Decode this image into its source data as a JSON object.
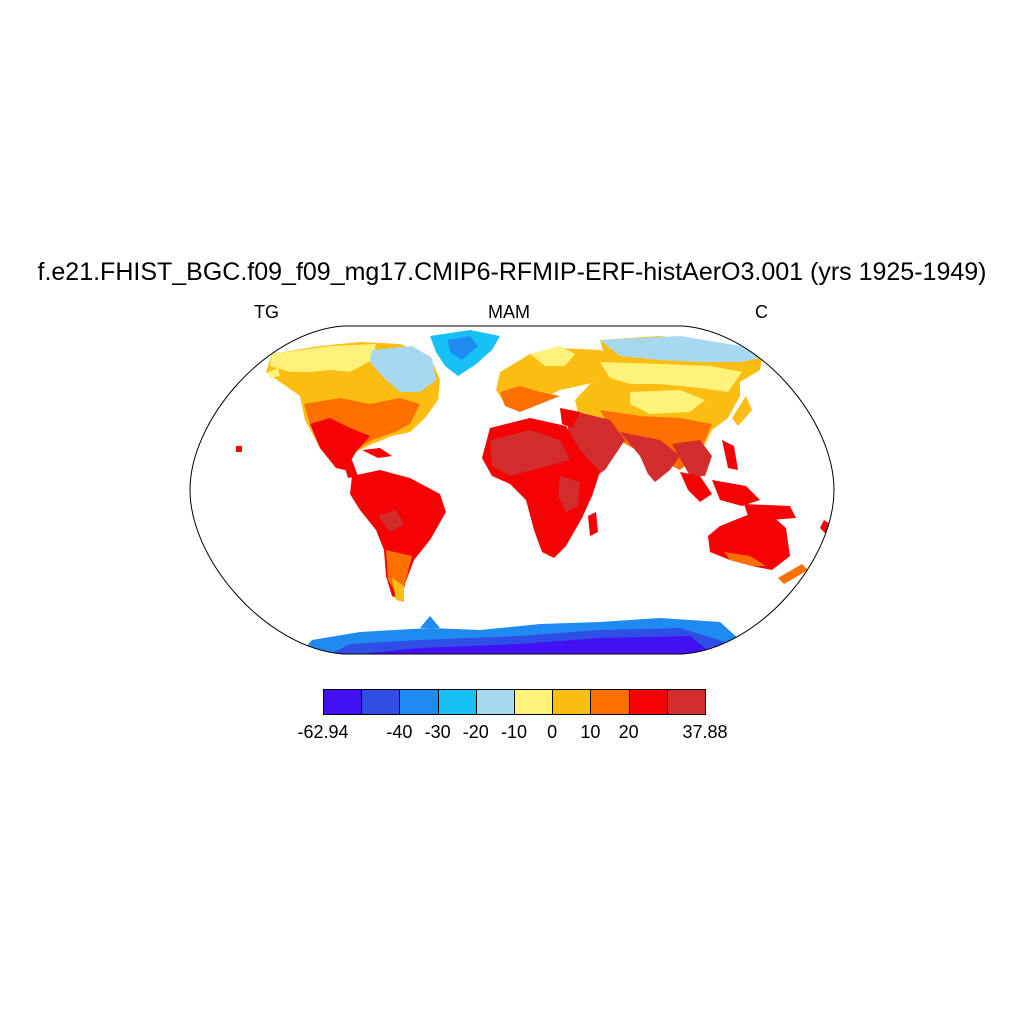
{
  "title": "f.e21.FHIST_BGC.f09_f09_mg17.CMIP6-RFMIP-ERF-histAerO3.001 (yrs 1925-1949)",
  "left_label": "TG",
  "center_label": "MAM",
  "right_label": "C",
  "colorbar": {
    "colors": [
      "#4110f5",
      "#2e4ee6",
      "#1f8af0",
      "#17c1f5",
      "#a6d8f2",
      "#fff27a",
      "#fcbd12",
      "#fe6f02",
      "#f40204",
      "#d22c2c"
    ],
    "labels": [
      "-62.94",
      "-40",
      "-30",
      "-20",
      "-10",
      "0",
      "10",
      "20",
      "37.88"
    ]
  }
}
